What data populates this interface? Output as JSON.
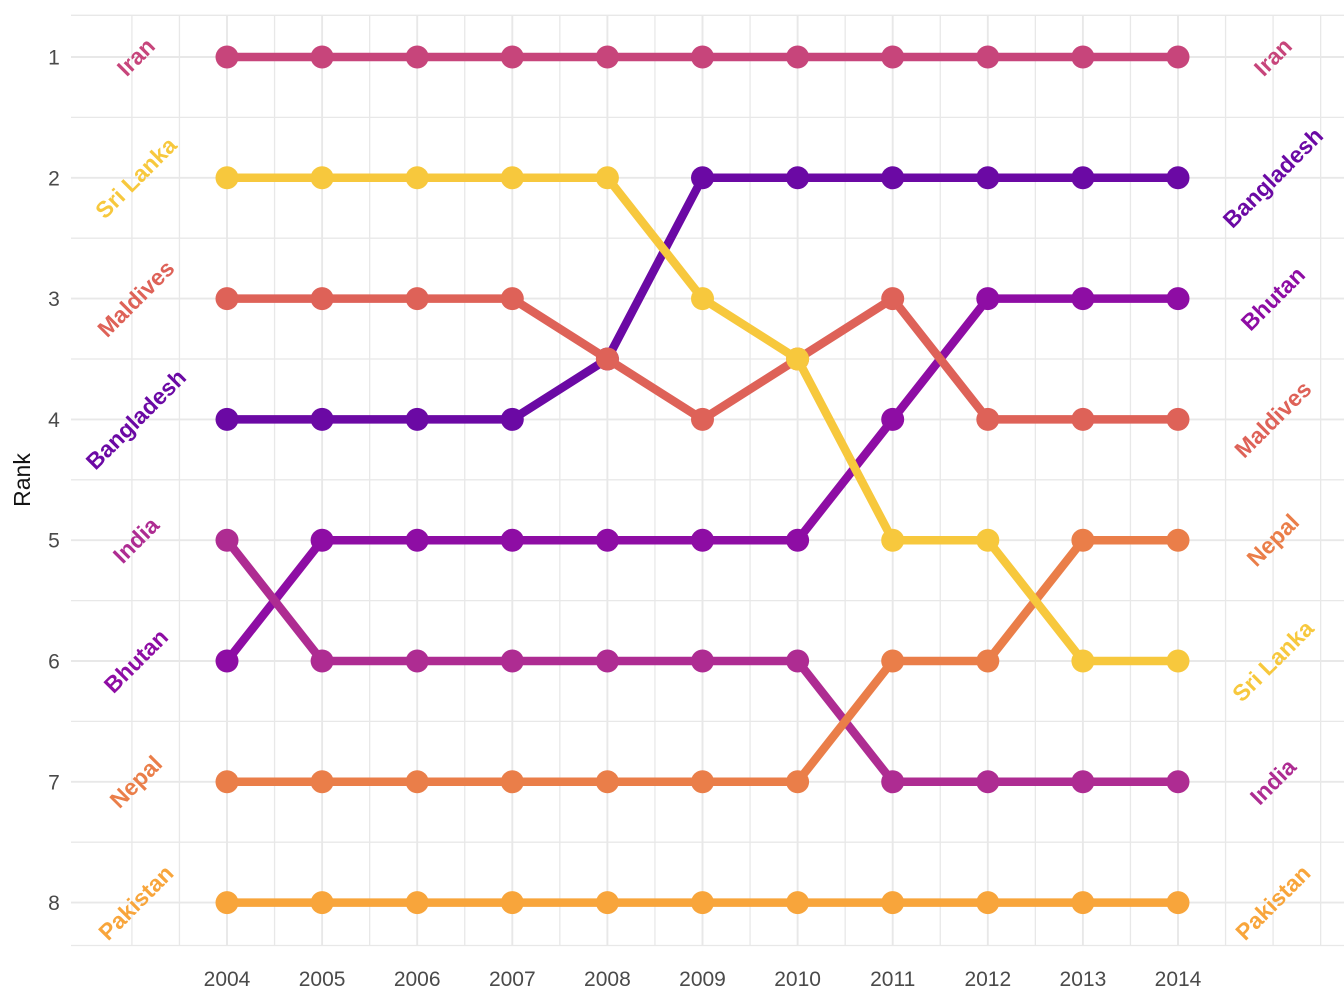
{
  "chart_data": {
    "type": "line",
    "subtype": "bump-rank-chart",
    "title": "",
    "xlabel": "",
    "ylabel": "Rank",
    "x": [
      2004,
      2005,
      2006,
      2007,
      2008,
      2009,
      2010,
      2011,
      2012,
      2013,
      2014
    ],
    "x_tick_labels": [
      "2004",
      "2005",
      "2006",
      "2007",
      "2008",
      "2009",
      "2010",
      "2011",
      "2012",
      "2013",
      "2014"
    ],
    "y_ticks": [
      1,
      2,
      3,
      4,
      5,
      6,
      7,
      8
    ],
    "y_tick_labels": [
      "1",
      "2",
      "3",
      "4",
      "5",
      "6",
      "7",
      "8"
    ],
    "y_axis_reversed": true,
    "grid": true,
    "legend": "none (direct labels on both sides of lines)",
    "series": [
      {
        "name": "Bangladesh",
        "color": "#6B09A4",
        "ranks": [
          4,
          4,
          4,
          4,
          3.5,
          2,
          2,
          2,
          2,
          2,
          2
        ]
      },
      {
        "name": "Bhutan",
        "color": "#8E0DA4",
        "ranks": [
          6,
          5,
          5,
          5,
          5,
          5,
          5,
          4,
          3,
          3,
          3
        ]
      },
      {
        "name": "India",
        "color": "#AE2C92",
        "ranks": [
          5,
          6,
          6,
          6,
          6,
          6,
          6,
          7,
          7,
          7,
          7
        ]
      },
      {
        "name": "Iran",
        "color": "#C7457B",
        "ranks": [
          1,
          1,
          1,
          1,
          1,
          1,
          1,
          1,
          1,
          1,
          1
        ]
      },
      {
        "name": "Maldives",
        "color": "#DE6258",
        "ranks": [
          3,
          3,
          3,
          3,
          3.5,
          4,
          3.5,
          3,
          4,
          4,
          4
        ]
      },
      {
        "name": "Nepal",
        "color": "#EA7E49",
        "ranks": [
          7,
          7,
          7,
          7,
          7,
          7,
          7,
          6,
          6,
          5,
          5
        ]
      },
      {
        "name": "Pakistan",
        "color": "#F8A53B",
        "ranks": [
          8,
          8,
          8,
          8,
          8,
          8,
          8,
          8,
          8,
          8,
          8
        ]
      },
      {
        "name": "Sri Lanka",
        "color": "#F7C83D",
        "ranks": [
          2,
          2,
          2,
          2,
          2,
          3,
          3.5,
          5,
          5,
          6,
          6
        ]
      }
    ],
    "left_label_order_top_to_bottom": [
      "Iran",
      "Sri Lanka",
      "Maldives",
      "Bangladesh",
      "India",
      "Bhutan",
      "Nepal",
      "Pakistan"
    ],
    "right_label_order_top_to_bottom": [
      "Iran",
      "Bangladesh",
      "Bhutan",
      "Maldives",
      "Nepal",
      "Sri Lanka",
      "India",
      "Pakistan"
    ]
  },
  "style": {
    "background_color": "#FFFFFF",
    "gridline_color": "#E8E8E8",
    "axis_text_color": "#4A4A4A",
    "axis_title_color": "#141414"
  }
}
